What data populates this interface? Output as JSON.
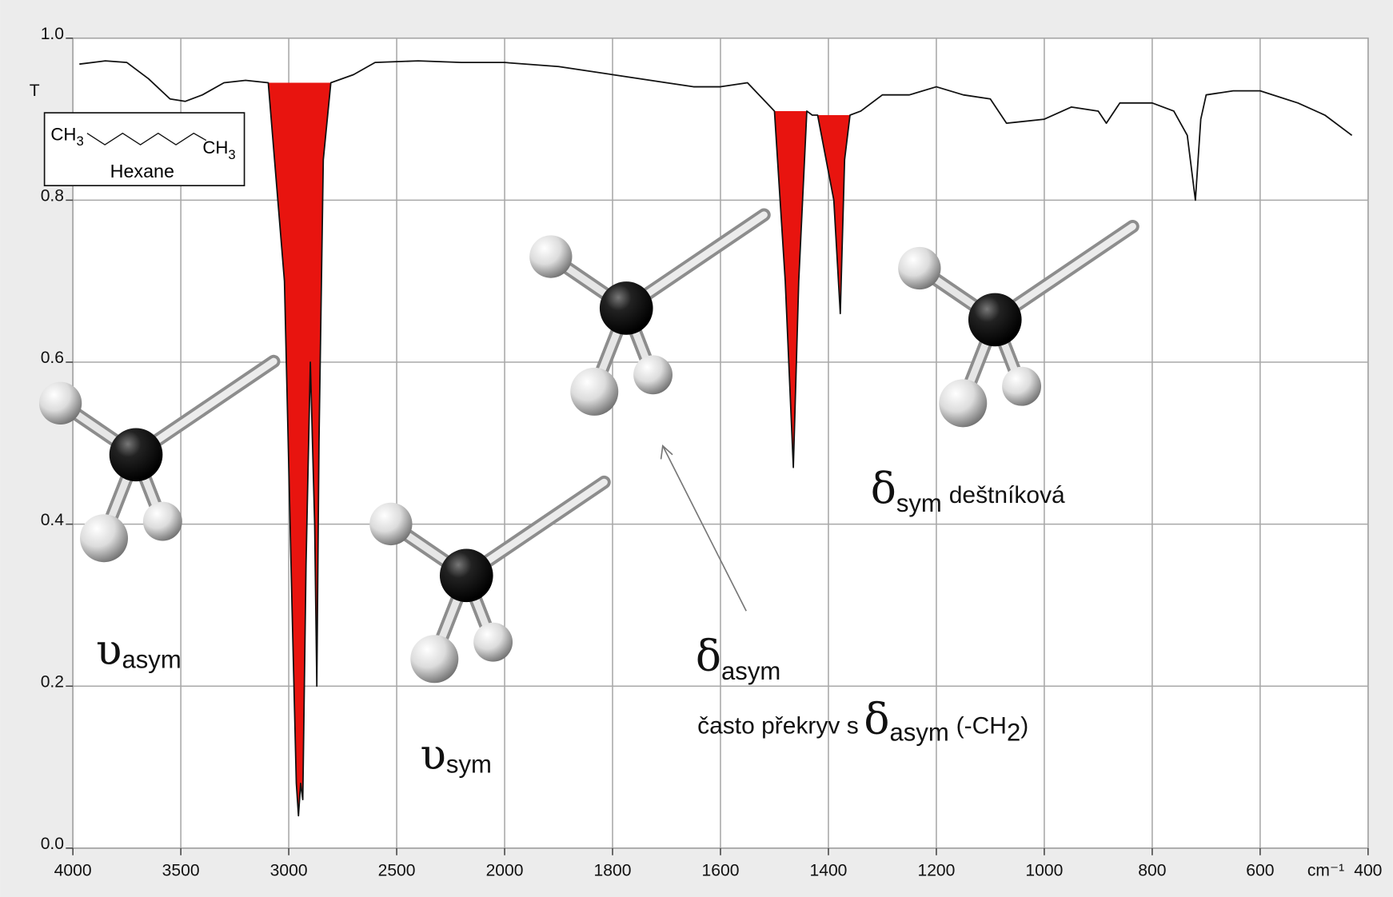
{
  "chart_data": {
    "type": "line",
    "ylabel": "T",
    "xlabel": "cm⁻¹",
    "xlim": [
      4000,
      400
    ],
    "xticks": [
      4000,
      3500,
      3000,
      2500,
      2000,
      1800,
      1600,
      1400,
      1200,
      1000,
      800,
      600,
      400
    ],
    "ylim": [
      0,
      1
    ],
    "yticks": [
      {
        "value": 0,
        "label": "0.0"
      },
      {
        "value": 0.2,
        "label": "0.2"
      },
      {
        "value": 0.4,
        "label": "0.4"
      },
      {
        "value": 0.6,
        "label": "0.6"
      },
      {
        "value": 0.8,
        "label": "0.8"
      },
      {
        "value": 1,
        "label": "1.0"
      }
    ],
    "grid": true,
    "series": [
      {
        "color": "#111111",
        "x": [
          3970,
          3850,
          3750,
          3650,
          3550,
          3480,
          3400,
          3300,
          3200,
          3095,
          3020,
          2985,
          2965,
          2955,
          2945,
          2935,
          2920,
          2900,
          2880,
          2870,
          2860,
          2840,
          2805,
          2700,
          2600,
          2400,
          2200,
          2000,
          1900,
          1800,
          1700,
          1650,
          1600,
          1550,
          1500,
          1480,
          1465,
          1455,
          1440,
          1430,
          1420,
          1390,
          1378,
          1370,
          1360,
          1340,
          1300,
          1250,
          1200,
          1150,
          1100,
          1070,
          1000,
          950,
          900,
          885,
          860,
          800,
          760,
          735,
          720,
          710,
          700,
          650,
          600,
          530,
          480,
          430
        ],
        "values": [
          0.968,
          0.972,
          0.97,
          0.95,
          0.925,
          0.922,
          0.93,
          0.945,
          0.948,
          0.945,
          0.7,
          0.3,
          0.08,
          0.04,
          0.08,
          0.06,
          0.35,
          0.6,
          0.4,
          0.2,
          0.5,
          0.85,
          0.945,
          0.955,
          0.97,
          0.972,
          0.97,
          0.97,
          0.965,
          0.955,
          0.945,
          0.94,
          0.94,
          0.945,
          0.91,
          0.7,
          0.47,
          0.7,
          0.91,
          0.905,
          0.905,
          0.8,
          0.66,
          0.85,
          0.905,
          0.91,
          0.93,
          0.93,
          0.94,
          0.93,
          0.925,
          0.895,
          0.9,
          0.915,
          0.91,
          0.895,
          0.92,
          0.92,
          0.91,
          0.88,
          0.8,
          0.9,
          0.93,
          0.935,
          0.935,
          0.92,
          0.905,
          0.88
        ]
      }
    ],
    "highlighted_bands": {
      "color": "#e8140f",
      "ranges": [
        [
          3095,
          2805
        ],
        [
          1500,
          1440
        ],
        [
          1420,
          1360
        ]
      ]
    },
    "inset": {
      "left": "CH",
      "left_sub": "3",
      "right": "CH",
      "right_sub": "3",
      "name": "Hexane"
    },
    "annotations": {
      "nu_asym": {
        "symbol": "υ",
        "sub": "asym"
      },
      "nu_sym": {
        "symbol": "υ",
        "sub": "sym"
      },
      "delta_asym": {
        "symbol": "δ",
        "sub": "asym"
      },
      "delta_sym": {
        "symbol": "δ",
        "sub": "sym",
        "text": "deštníková"
      },
      "overlap": {
        "text": "často překryv s",
        "symbol": "δ",
        "sub": "asym",
        "text2": "(-CH",
        "sub2": "2",
        "text3": ")"
      }
    }
  }
}
